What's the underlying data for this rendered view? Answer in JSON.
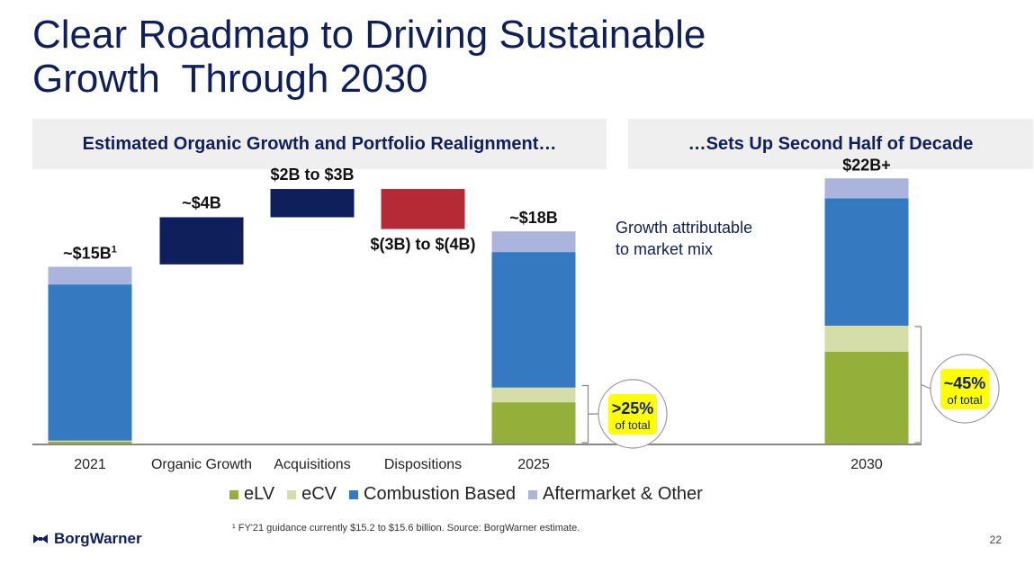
{
  "title": {
    "line1": "Clear Roadmap to Driving Sustainable",
    "line2": "Growth  Through 2030"
  },
  "panels": {
    "left_header": "Estimated Organic Growth and Portfolio Realignment…",
    "right_header": "…Sets Up Second Half of Decade"
  },
  "colors": {
    "eLV": "#94b03a",
    "eCV": "#d5dea8",
    "combustion": "#3579c0",
    "aftermarket": "#aab4dc",
    "positive_step": "#0f1f5c",
    "negative_step": "#b52a35",
    "title": "#0f1f5c",
    "highlight": "#ffff00"
  },
  "chart_data": {
    "type": "bar",
    "title": "",
    "categories": [
      "2021",
      "Organic Growth",
      "Acquisitions",
      "Dispositions",
      "2025",
      "2030"
    ],
    "stacked_totals": [
      {
        "category": "2021",
        "label": "~$15B",
        "label_sup": "1",
        "total": 15,
        "segments": {
          "eLV": 0.15,
          "eCV": 0.1,
          "Combustion Based": 13.25,
          "Aftermarket & Other": 1.5
        }
      },
      {
        "category": "2025",
        "label": "~$18B",
        "total": 18,
        "segments": {
          "eLV": 3.5,
          "eCV": 1.25,
          "Combustion Based": 11.5,
          "Aftermarket & Other": 1.75
        }
      },
      {
        "category": "2030",
        "label": "$22B+",
        "total": 22.5,
        "segments": {
          "eLV": 7.8,
          "eCV": 2.2,
          "Combustion Based": 10.8,
          "Aftermarket & Other": 1.7
        }
      }
    ],
    "bridge_steps": [
      {
        "category": "Organic Growth",
        "label": "~$4B",
        "from": 15.2,
        "to": 19.2,
        "direction": "up"
      },
      {
        "category": "Acquisitions",
        "label": "$2B to $3B",
        "from": 19.2,
        "to": 21.6,
        "direction": "up"
      },
      {
        "category": "Dispositions",
        "label": "$(3B) to $(4B)",
        "from": 21.6,
        "to": 18.2,
        "direction": "down"
      }
    ],
    "series": [
      {
        "name": "eLV"
      },
      {
        "name": "eCV"
      },
      {
        "name": "Combustion Based"
      },
      {
        "name": "Aftermarket & Other"
      }
    ],
    "ylim": [
      0,
      24
    ],
    "legend_position": "bottom",
    "annotations": {
      "mix_note_line1": "Growth attributable",
      "mix_note_line2": "to market mix",
      "callout_2025_value": ">25%",
      "callout_2025_sub": "of total",
      "callout_2030_value": "~45%",
      "callout_2030_sub": "of total"
    }
  },
  "footnote": "¹ FY'21 guidance currently $15.2 to $15.6 billion. Source: BorgWarner estimate.",
  "logo_text": "BorgWarner",
  "page_number": "22"
}
